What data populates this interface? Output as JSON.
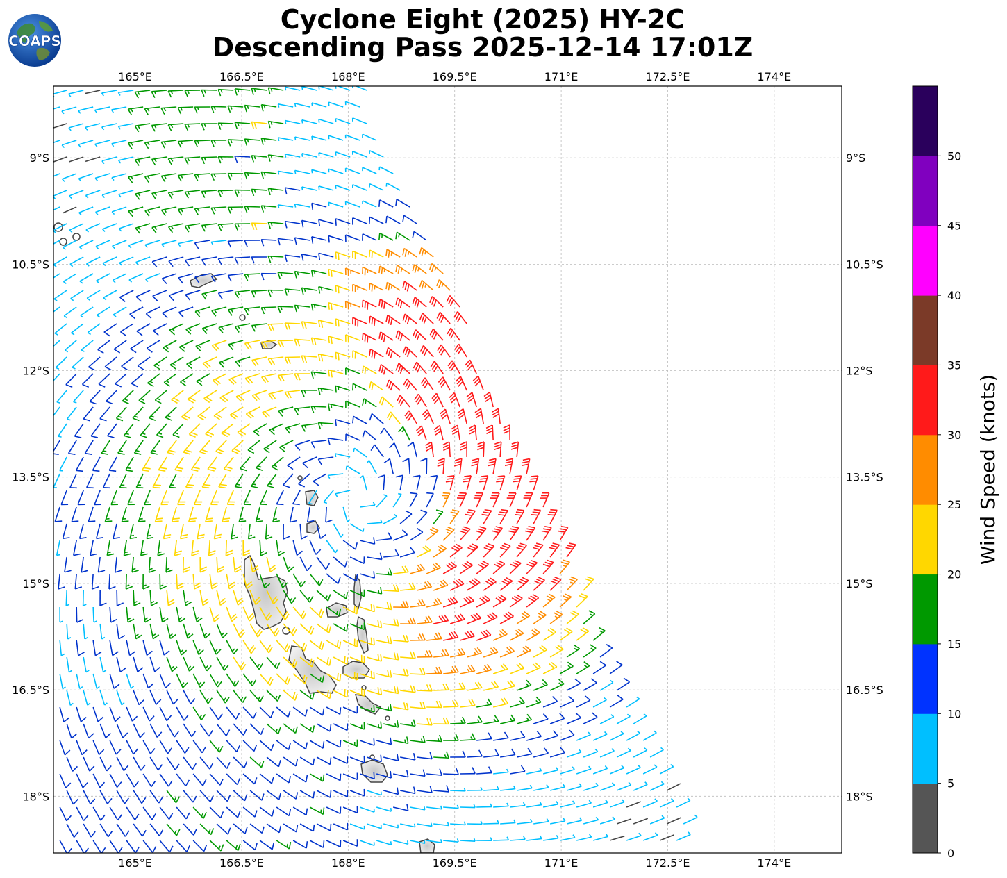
{
  "title": {
    "line1": "Cyclone Eight (2025) HY-2C",
    "line2": "Descending Pass 2025-12-14 17:01Z"
  },
  "logo": {
    "text": "COAPS",
    "icon": "globe-icon"
  },
  "map": {
    "lon_ticks": [
      "165°E",
      "166.5°E",
      "168°E",
      "169.5°E",
      "171°E",
      "172.5°E",
      "174°E"
    ],
    "lat_ticks": [
      "9°S",
      "10.5°S",
      "12°S",
      "13.5°S",
      "15°S",
      "16.5°S",
      "18°S"
    ],
    "lon_range": [
      163.85,
      174.95
    ],
    "lat_range": [
      7.99,
      18.8
    ],
    "gridlines": true,
    "storm_center": {
      "lon": 168.1,
      "lat": 13.8
    },
    "land_color": "#e8e8e8",
    "coast_color": "#444444"
  },
  "colorbar": {
    "title": "Wind Speed (knots)",
    "tick_labels": [
      "0",
      "5",
      "10",
      "15",
      "20",
      "25",
      "30",
      "35",
      "40",
      "45",
      "50"
    ],
    "colors": [
      "#555555",
      "#00bfff",
      "#0033ff",
      "#009900",
      "#ffd700",
      "#ff8c00",
      "#ff1a1a",
      "#7b3a28",
      "#ff00ff",
      "#8000bf",
      "#2a005c"
    ],
    "range": [
      0,
      55
    ]
  },
  "chart_data": {
    "type": "wind-barbs",
    "title": "Cyclone Eight (2025) HY-2C",
    "subtitle": "Descending Pass 2025-12-14 17:01Z",
    "units": "knots",
    "max_wind_kt": 35,
    "color_scale_bins": [
      0,
      5,
      10,
      15,
      20,
      25,
      30,
      35,
      40,
      45,
      50,
      55
    ]
  }
}
